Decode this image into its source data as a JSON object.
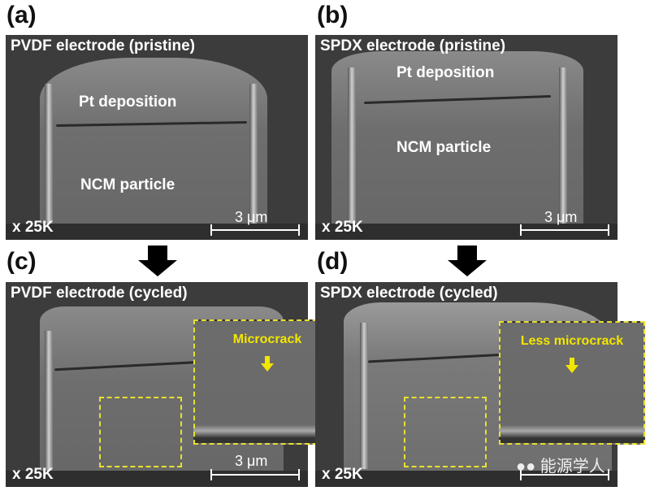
{
  "panels": [
    {
      "id": "a",
      "label": "(a)",
      "title": "PVDF electrode (pristine)",
      "labels": [
        "Pt deposition",
        "NCM particle"
      ],
      "magnification": "x 25K",
      "scale_bar": "3 μm"
    },
    {
      "id": "b",
      "label": "(b)",
      "title": "SPDX electrode (pristine)",
      "labels": [
        "Pt deposition",
        "NCM particle"
      ],
      "magnification": "x 25K",
      "scale_bar": "3 μm"
    },
    {
      "id": "c",
      "label": "(c)",
      "title": "PVDF electrode (cycled)",
      "inset_label": "Microcrack",
      "magnification": "x 25K",
      "scale_bar": "3 μm"
    },
    {
      "id": "d",
      "label": "(d)",
      "title": "SPDX electrode (cycled)",
      "inset_label": "Less microcrack",
      "magnification": "x 25K"
    }
  ],
  "watermark": "能源学人",
  "colors": {
    "highlight": "#f2e600",
    "arrow": "#000000"
  }
}
